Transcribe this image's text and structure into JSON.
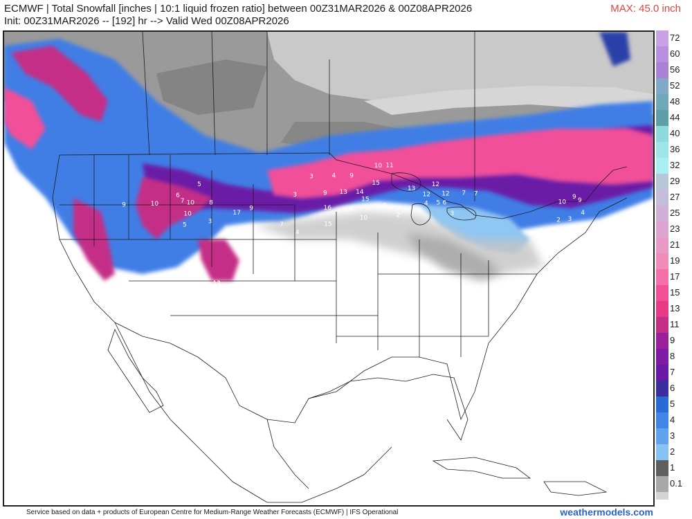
{
  "header": {
    "title_line1": "ECMWF | Total Snowfall [inches | 10:1 liquid frozen ratio] between 00Z31MAR2026 & 00Z08APR2026",
    "title_line2": "Init: 00Z31MAR2026 -- [192] hr --> Valid Wed 00Z08APR2026",
    "max_label": "MAX: 45.0 inch"
  },
  "colorbar": {
    "levels": [
      {
        "label": "72",
        "color": "#c9a2e6"
      },
      {
        "label": "60",
        "color": "#b98fe0"
      },
      {
        "label": "56",
        "color": "#a882d6"
      },
      {
        "label": "52",
        "color": "#7fa8c9"
      },
      {
        "label": "48",
        "color": "#6fa8b8"
      },
      {
        "label": "44",
        "color": "#5e9ea6"
      },
      {
        "label": "40",
        "color": "#8ed9dc"
      },
      {
        "label": "36",
        "color": "#9ee5e8"
      },
      {
        "label": "32",
        "color": "#a9efef"
      },
      {
        "label": "29",
        "color": "#b7c7d8"
      },
      {
        "label": "27",
        "color": "#c4bcd9"
      },
      {
        "label": "25",
        "color": "#d0b0d6"
      },
      {
        "label": "23",
        "color": "#dca4cf"
      },
      {
        "label": "21",
        "color": "#e99ac6"
      },
      {
        "label": "19",
        "color": "#f28bb9"
      },
      {
        "label": "17",
        "color": "#f56fa8"
      },
      {
        "label": "15",
        "color": "#f25096"
      },
      {
        "label": "13",
        "color": "#e83a86"
      },
      {
        "label": "11",
        "color": "#c42f86"
      },
      {
        "label": "9",
        "color": "#9a1f9a"
      },
      {
        "label": "8",
        "color": "#7e1aa3"
      },
      {
        "label": "7",
        "color": "#6a18a8"
      },
      {
        "label": "6",
        "color": "#3a2e9e"
      },
      {
        "label": "5",
        "color": "#2a6ad6"
      },
      {
        "label": "4",
        "color": "#3f86e6"
      },
      {
        "label": "3",
        "color": "#5fa3ee"
      },
      {
        "label": "2",
        "color": "#86c2f4"
      },
      {
        "label": "1",
        "color": "#5e5e5e"
      },
      {
        "label": "0.1",
        "color": "#a8a8a8"
      }
    ],
    "extra_color": "#d4d4d4"
  },
  "map": {
    "accent_colors": {
      "light_gray": "#d9d9d9",
      "mid_gray": "#a6a6a6",
      "dark_gray": "#6f6f6f",
      "light_blue": "#8fc6f3",
      "blue": "#3f7ee6",
      "dark_blue": "#2b3fa8",
      "purple": "#6a1aa6",
      "magenta": "#c42f86",
      "pink": "#f2509a"
    },
    "value_labels": [
      {
        "text": "10",
        "lon": -92.3,
        "lat": 48.0
      },
      {
        "text": "11",
        "lon": -91.0,
        "lat": 48.0
      },
      {
        "text": "15",
        "lon": -92.6,
        "lat": 46.6
      },
      {
        "text": "9",
        "lon": -95.3,
        "lat": 47.2
      },
      {
        "text": "4",
        "lon": -97.3,
        "lat": 47.2
      },
      {
        "text": "3",
        "lon": -99.8,
        "lat": 47.1
      },
      {
        "text": "3",
        "lon": -101.5,
        "lat": 45.6
      },
      {
        "text": "9",
        "lon": -98.2,
        "lat": 45.8
      },
      {
        "text": "13",
        "lon": -96.2,
        "lat": 45.9
      },
      {
        "text": "14",
        "lon": -94.4,
        "lat": 45.9
      },
      {
        "text": "15",
        "lon": -93.8,
        "lat": 45.3
      },
      {
        "text": "16",
        "lon": -97.9,
        "lat": 44.6
      },
      {
        "text": "16",
        "lon": -95.6,
        "lat": 44.5
      },
      {
        "text": "10",
        "lon": -94.0,
        "lat": 43.8
      },
      {
        "text": "15",
        "lon": -97.8,
        "lat": 43.3
      },
      {
        "text": "13",
        "lon": -88.7,
        "lat": 46.1
      },
      {
        "text": "12",
        "lon": -86.0,
        "lat": 46.4
      },
      {
        "text": "12",
        "lon": -87.1,
        "lat": 45.6
      },
      {
        "text": "12",
        "lon": -85.0,
        "lat": 45.6
      },
      {
        "text": "6",
        "lon": -91.7,
        "lat": 44.8
      },
      {
        "text": "4",
        "lon": -87.2,
        "lat": 44.9
      },
      {
        "text": "5",
        "lon": -85.9,
        "lat": 44.9
      },
      {
        "text": "6",
        "lon": -85.2,
        "lat": 44.9
      },
      {
        "text": "7",
        "lon": -83.0,
        "lat": 45.6
      },
      {
        "text": "7",
        "lon": -81.7,
        "lat": 45.5
      },
      {
        "text": "3",
        "lon": -84.5,
        "lat": 44.0
      },
      {
        "text": "2",
        "lon": -90.3,
        "lat": 44.0
      },
      {
        "text": "4",
        "lon": -101.0,
        "lat": 42.6
      },
      {
        "text": "7",
        "lon": -102.7,
        "lat": 43.2
      },
      {
        "text": "9",
        "lon": -106.1,
        "lat": 44.4
      },
      {
        "text": "17",
        "lon": -107.6,
        "lat": 44.0
      },
      {
        "text": "8",
        "lon": -110.5,
        "lat": 44.7
      },
      {
        "text": "10",
        "lon": -112.7,
        "lat": 44.6
      },
      {
        "text": "10",
        "lon": -112.8,
        "lat": 43.7
      },
      {
        "text": "5",
        "lon": -112.9,
        "lat": 42.8
      },
      {
        "text": "3",
        "lon": -110.3,
        "lat": 43.2
      },
      {
        "text": "6",
        "lon": -114.2,
        "lat": 45.1
      },
      {
        "text": "7",
        "lon": -113.6,
        "lat": 44.7
      },
      {
        "text": "5",
        "lon": -112.1,
        "lat": 46.1
      },
      {
        "text": "10",
        "lon": -116.5,
        "lat": 44.3
      },
      {
        "text": "9",
        "lon": -119.7,
        "lat": 44.0
      },
      {
        "text": "13",
        "lon": -108.7,
        "lat": 38.3
      },
      {
        "text": "10",
        "lon": -72.6,
        "lat": 44.4
      },
      {
        "text": "9",
        "lon": -71.2,
        "lat": 44.7
      },
      {
        "text": "9",
        "lon": -70.7,
        "lat": 44.4
      },
      {
        "text": "4",
        "lon": -70.7,
        "lat": 43.4
      },
      {
        "text": "2",
        "lon": -73.4,
        "lat": 43.0
      },
      {
        "text": "3",
        "lon": -72.2,
        "lat": 43.0
      }
    ]
  },
  "footer": {
    "source_text": "Service based on data + products of European Centre for Medium-Range Weather Forecasts (ECMWF) | IFS Operational",
    "brand": "weathermodels.com"
  }
}
